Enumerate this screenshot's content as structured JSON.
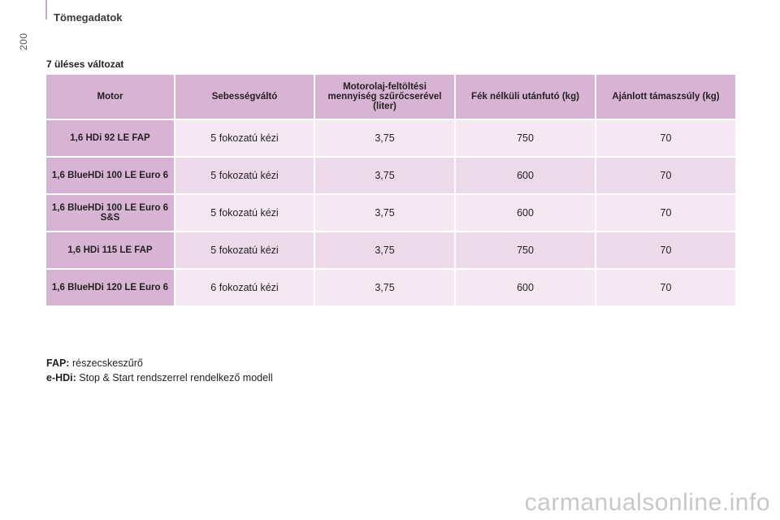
{
  "header": {
    "section_title": "Tömegadatok",
    "page_number": "200"
  },
  "subtitle": "7 üléses változat",
  "table": {
    "columns": [
      "Motor",
      "Sebességváltó",
      "Motorolaj-feltöltési mennyiség szűrőcserével (liter)",
      "Fék nélküli utánfutó (kg)",
      "Ajánlott támaszsúly (kg)"
    ],
    "rows": [
      {
        "motor": "1,6 HDi 92 LE FAP",
        "gearbox": "5 fokozatú kézi",
        "oil": "3,75",
        "trailer": "750",
        "nose": "70"
      },
      {
        "motor": "1,6 BlueHDi 100 LE Euro 6",
        "gearbox": "5 fokozatú kézi",
        "oil": "3,75",
        "trailer": "600",
        "nose": "70"
      },
      {
        "motor": "1,6 BlueHDi 100 LE Euro 6 S&S",
        "gearbox": "5 fokozatú kézi",
        "oil": "3,75",
        "trailer": "600",
        "nose": "70"
      },
      {
        "motor": "1,6 HDi 115 LE FAP",
        "gearbox": "5 fokozatú kézi",
        "oil": "3,75",
        "trailer": "750",
        "nose": "70"
      },
      {
        "motor": "1,6 BlueHDi 120 LE Euro 6",
        "gearbox": "6 fokozatú kézi",
        "oil": "3,75",
        "trailer": "600",
        "nose": "70"
      }
    ]
  },
  "notes": [
    {
      "term": "FAP:",
      "definition": "részecskeszűrő"
    },
    {
      "term": "e-HDi:",
      "definition": "Stop & Start rendszerrel rendelkező modell"
    }
  ],
  "watermark": "carmanualsonline.info"
}
